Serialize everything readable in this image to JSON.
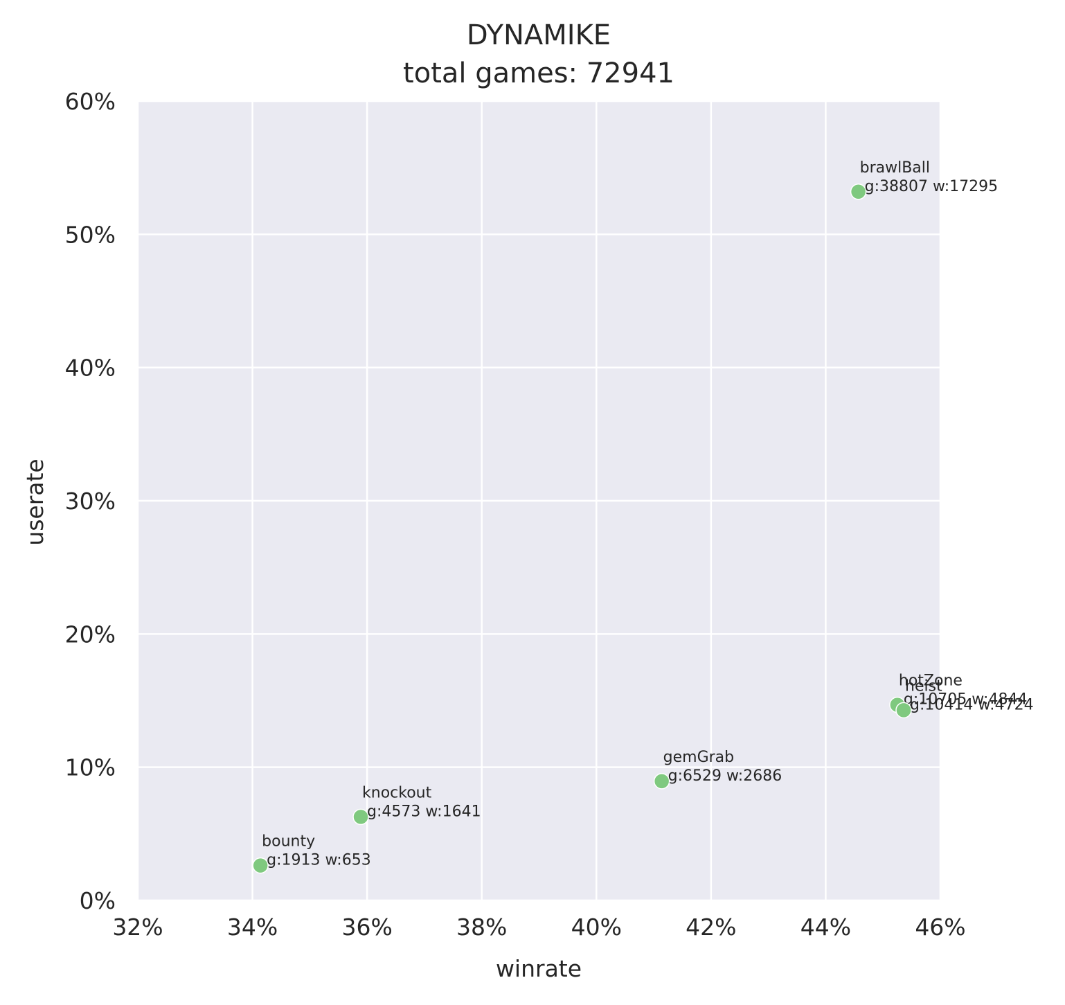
{
  "chart_data": {
    "type": "scatter",
    "title": "DYNAMIKE",
    "subtitle": "total games: 72941",
    "xlabel": "winrate",
    "ylabel": "userate",
    "xlim": [
      0.32,
      0.46
    ],
    "ylim": [
      0.0,
      0.6
    ],
    "xticks": [
      0.32,
      0.34,
      0.36,
      0.38,
      0.4,
      0.42,
      0.44,
      0.46
    ],
    "yticks": [
      0.0,
      0.1,
      0.2,
      0.3,
      0.4,
      0.5,
      0.6
    ],
    "xtick_labels": [
      "32%",
      "34%",
      "36%",
      "38%",
      "40%",
      "42%",
      "44%",
      "46%"
    ],
    "ytick_labels": [
      "0%",
      "10%",
      "20%",
      "30%",
      "40%",
      "50%",
      "60%"
    ],
    "grid": true,
    "colors": {
      "background": "#eaeaf2",
      "grid": "#ffffff",
      "point": "#7fc97f"
    },
    "points": [
      {
        "name": "brawlBall",
        "detail": "g:38807 w:17295",
        "x": 0.4457,
        "y": 0.532
      },
      {
        "name": "hotZone",
        "detail": "g:10705 w:4844",
        "x": 0.4525,
        "y": 0.1468
      },
      {
        "name": "heist",
        "detail": "g:10414 w:4724",
        "x": 0.4536,
        "y": 0.1428
      },
      {
        "name": "gemGrab",
        "detail": "g:6529 w:2686",
        "x": 0.4114,
        "y": 0.0895
      },
      {
        "name": "knockout",
        "detail": "g:4573 w:1641",
        "x": 0.3589,
        "y": 0.0627
      },
      {
        "name": "bounty",
        "detail": "g:1913 w:653",
        "x": 0.3414,
        "y": 0.0262
      }
    ]
  }
}
